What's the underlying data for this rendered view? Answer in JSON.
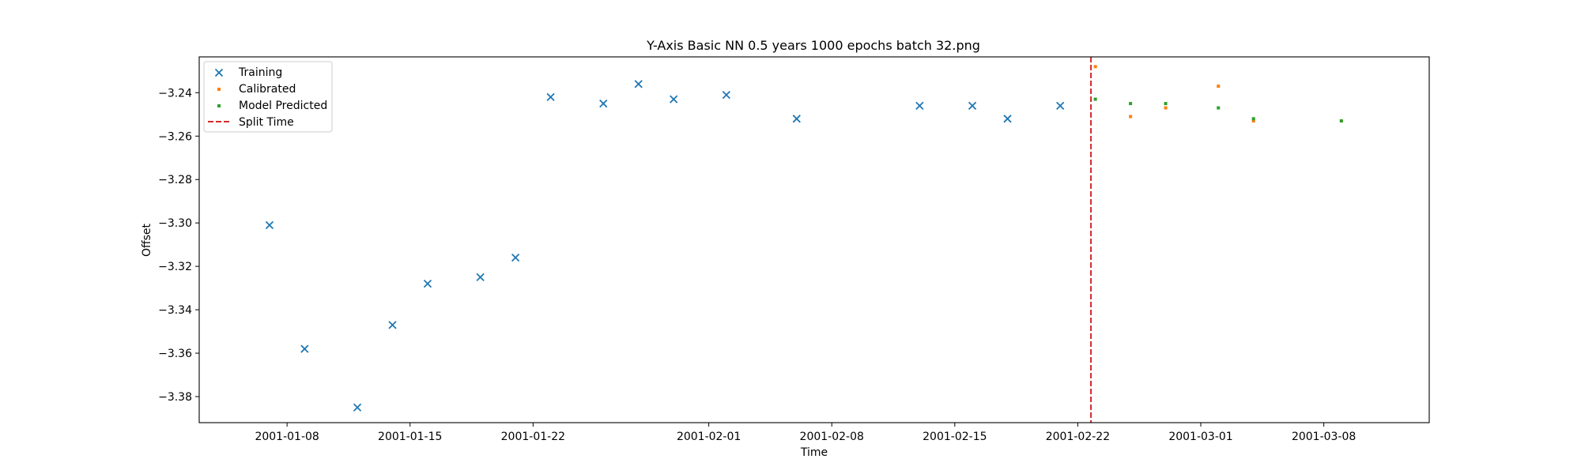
{
  "chart_data": {
    "type": "scatter",
    "title": "Y-Axis Basic NN 0.5 years 1000 epochs batch 32.png",
    "xlabel": "Time",
    "ylabel": "Offset",
    "xlim": [
      "2001-01-03",
      "2001-03-14"
    ],
    "ylim": [
      -3.392,
      -3.2235
    ],
    "x_ticks": [
      "2001-01-08",
      "2001-01-15",
      "2001-01-22",
      "2001-02-01",
      "2001-02-08",
      "2001-02-15",
      "2001-02-22",
      "2001-03-01",
      "2001-03-08"
    ],
    "y_ticks": [
      -3.38,
      -3.36,
      -3.34,
      -3.32,
      -3.3,
      -3.28,
      -3.26,
      -3.24
    ],
    "y_tick_labels": [
      "−3.38",
      "−3.36",
      "−3.34",
      "−3.32",
      "−3.30",
      "−3.28",
      "−3.26",
      "−3.24"
    ],
    "grid": false,
    "legend_position": "upper-left",
    "series": [
      {
        "name": "Training",
        "marker": "x",
        "color": "#1f77b4",
        "points": [
          {
            "x": "2001-01-07",
            "y": -3.301
          },
          {
            "x": "2001-01-09",
            "y": -3.358
          },
          {
            "x": "2001-01-12",
            "y": -3.385
          },
          {
            "x": "2001-01-14",
            "y": -3.347
          },
          {
            "x": "2001-01-16",
            "y": -3.328
          },
          {
            "x": "2001-01-19",
            "y": -3.325
          },
          {
            "x": "2001-01-21",
            "y": -3.316
          },
          {
            "x": "2001-01-23",
            "y": -3.242
          },
          {
            "x": "2001-01-26",
            "y": -3.245
          },
          {
            "x": "2001-01-28",
            "y": -3.236
          },
          {
            "x": "2001-01-30",
            "y": -3.243
          },
          {
            "x": "2001-02-02",
            "y": -3.241
          },
          {
            "x": "2001-02-06",
            "y": -3.252
          },
          {
            "x": "2001-02-13",
            "y": -3.246
          },
          {
            "x": "2001-02-16",
            "y": -3.246
          },
          {
            "x": "2001-02-18",
            "y": -3.252
          },
          {
            "x": "2001-02-21",
            "y": -3.246
          }
        ]
      },
      {
        "name": "Calibrated",
        "marker": "square",
        "color": "#ff7f0e",
        "points": [
          {
            "x": "2001-02-23",
            "y": -3.228
          },
          {
            "x": "2001-02-25",
            "y": -3.251
          },
          {
            "x": "2001-02-27",
            "y": -3.247
          },
          {
            "x": "2001-03-02",
            "y": -3.237
          },
          {
            "x": "2001-03-04",
            "y": -3.253
          },
          {
            "x": "2001-03-09",
            "y": -3.253
          }
        ]
      },
      {
        "name": "Model Predicted",
        "marker": "square",
        "color": "#2ca02c",
        "points": [
          {
            "x": "2001-02-23",
            "y": -3.243
          },
          {
            "x": "2001-02-25",
            "y": -3.245
          },
          {
            "x": "2001-02-27",
            "y": -3.245
          },
          {
            "x": "2001-03-02",
            "y": -3.247
          },
          {
            "x": "2001-03-04",
            "y": -3.252
          },
          {
            "x": "2001-03-09",
            "y": -3.253
          }
        ]
      }
    ],
    "vlines": [
      {
        "name": "Split Time",
        "x": "2001-02-22T18:00",
        "color": "#d62728",
        "style": "dashed"
      }
    ]
  }
}
